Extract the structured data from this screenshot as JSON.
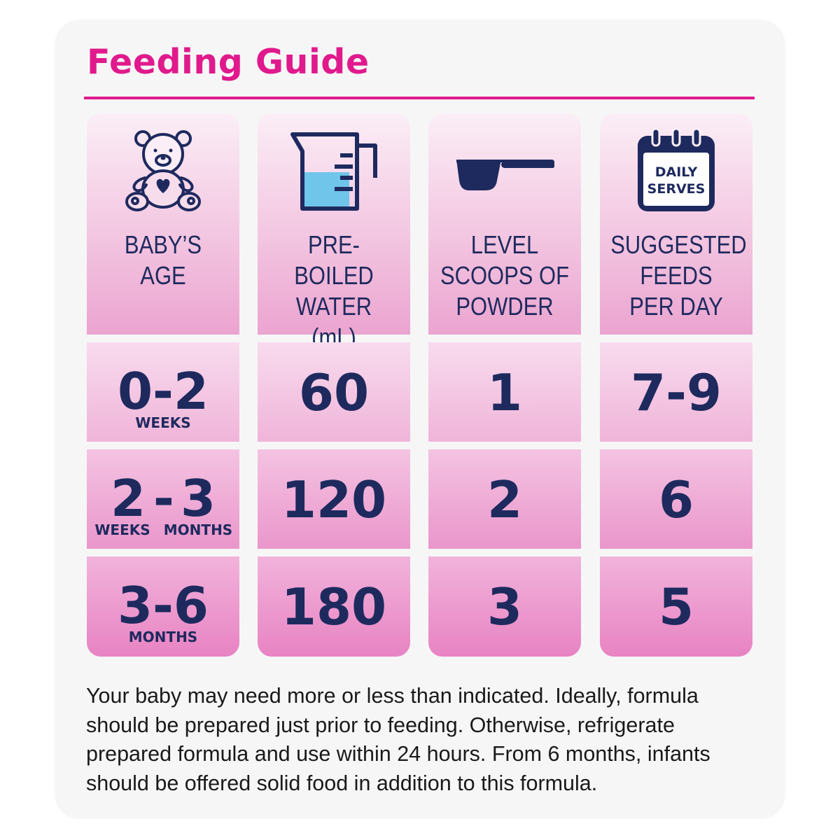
{
  "title": "Feeding Guide",
  "colors": {
    "accent": "#e01a8c",
    "text": "#1e2a5e",
    "water": "#6fc6ea"
  },
  "columns": [
    {
      "icon": "teddy-bear-icon",
      "header": [
        "BABY’S",
        "AGE"
      ]
    },
    {
      "icon": "measuring-jug-icon",
      "header": [
        "PRE-BOILED",
        "WATER",
        "(mL)"
      ]
    },
    {
      "icon": "scoop-icon",
      "header": [
        "LEVEL",
        "SCOOPS OF",
        "POWDER"
      ]
    },
    {
      "icon": "calendar-icon",
      "calendar_label": [
        "DAILY",
        "SERVES"
      ],
      "header": [
        "SUGGESTED",
        "FEEDS",
        "PER DAY"
      ]
    }
  ],
  "rows": [
    {
      "age": "0-2",
      "age_unit": "WEEKS",
      "water": "60",
      "scoops": "1",
      "feeds": "7-9"
    },
    {
      "age_from": "2",
      "age_dash": "-",
      "age_to": "3",
      "age_from_unit": "WEEKS",
      "age_to_unit": "MONTHS",
      "water": "120",
      "scoops": "2",
      "feeds": "6"
    },
    {
      "age": "3-6",
      "age_unit": "MONTHS",
      "water": "180",
      "scoops": "3",
      "feeds": "5"
    }
  ],
  "note": [
    "Your baby may need more or less than indicated. Ideally, formula",
    "should be prepared just prior to feeding. Otherwise, refrigerate",
    "prepared formula and use within 24 hours. From 6 months, infants",
    "should be offered solid food in addition to this formula."
  ]
}
